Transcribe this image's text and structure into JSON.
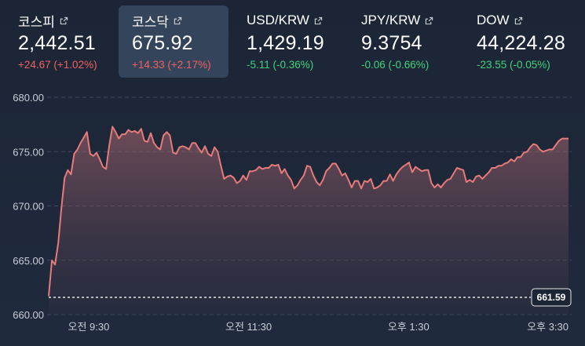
{
  "tickers": [
    {
      "name": "코스피",
      "value": "2,442.51",
      "change": "+24.67 (+1.02%)",
      "direction": "up",
      "active": false
    },
    {
      "name": "코스닥",
      "value": "675.92",
      "change": "+14.33 (+2.17%)",
      "direction": "up",
      "active": true
    },
    {
      "name": "USD/KRW",
      "value": "1,429.19",
      "change": "-5.11 (-0.36%)",
      "direction": "down",
      "active": false
    },
    {
      "name": "JPY/KRW",
      "value": "9.3754",
      "change": "-0.06 (-0.66%)",
      "direction": "down",
      "active": false
    },
    {
      "name": "DOW",
      "value": "44,224.28",
      "change": "-23.55 (-0.05%)",
      "direction": "down",
      "active": false
    }
  ],
  "icons": {
    "link": "external-link-icon"
  },
  "colors": {
    "up": "#f26161",
    "down": "#3fd37c",
    "line": "#e77a7a",
    "active_bg": "#34445b"
  },
  "chart_data": {
    "type": "area",
    "ylim": [
      660,
      680
    ],
    "yticks": [
      680,
      675,
      670,
      665,
      660
    ],
    "ytick_labels": [
      "680.00",
      "675.00",
      "670.00",
      "665.00",
      "660.00"
    ],
    "xticks": [
      "오전 9:30",
      "오전 11:30",
      "오후 1:30",
      "오후 3:30"
    ],
    "grid": true,
    "reference": {
      "value": 661.59,
      "label": "661.59"
    },
    "series": [
      {
        "values": [
          661.7,
          665.0,
          664.6,
          666.6,
          669.8,
          672.6,
          673.3,
          672.9,
          674.8,
          675.2,
          675.8,
          676.3,
          676.8,
          674.8,
          674.6,
          674.9,
          674.3,
          673.6,
          673.4,
          675.6,
          677.3,
          676.8,
          676.2,
          676.6,
          676.6,
          677.0,
          676.8,
          676.9,
          676.7,
          677.1,
          676.0,
          675.9,
          676.7,
          675.8,
          675.4,
          675.2,
          676.5,
          676.8,
          676.5,
          674.9,
          674.8,
          675.4,
          675.5,
          675.4,
          675.2,
          675.8,
          675.8,
          675.3,
          674.9,
          675.5,
          674.8,
          674.6,
          675.4,
          675.0,
          673.7,
          672.5,
          672.7,
          672.8,
          672.6,
          672.1,
          672.3,
          672.8,
          672.4,
          673.2,
          673.2,
          673.3,
          673.6,
          673.4,
          673.5,
          673.5,
          673.8,
          673.7,
          673.8,
          673.0,
          673.4,
          672.8,
          672.4,
          671.6,
          671.9,
          672.4,
          672.8,
          673.7,
          673.6,
          672.8,
          672.2,
          671.9,
          672.4,
          673.2,
          673.5,
          673.9,
          673.9,
          673.4,
          672.8,
          673.0,
          672.4,
          671.7,
          672.3,
          672.3,
          671.6,
          672.3,
          672.2,
          672.5,
          671.6,
          671.7,
          671.9,
          672.3,
          672.3,
          672.9,
          672.3,
          672.9,
          673.3,
          673.6,
          673.8,
          674.0,
          673.1,
          673.6,
          673.4,
          673.2,
          673.3,
          673.3,
          672.1,
          671.7,
          672.0,
          671.7,
          672.1,
          672.4,
          672.5,
          673.0,
          673.5,
          673.4,
          673.3,
          672.2,
          672.4,
          672.2,
          672.7,
          672.8,
          672.5,
          672.8,
          673.1,
          673.5,
          673.5,
          673.7,
          673.7,
          673.9,
          674.0,
          674.3,
          674.1,
          674.5,
          674.5,
          674.9,
          675.0,
          675.4,
          675.7,
          675.6,
          675.2,
          675.0,
          675.1,
          675.2,
          675.2,
          675.6,
          676.0,
          676.2,
          676.2,
          676.2
        ]
      }
    ],
    "time_span": {
      "start": "09:00",
      "end": "15:30",
      "ticks": [
        "09:30",
        "11:30",
        "13:30",
        "15:30"
      ]
    }
  }
}
